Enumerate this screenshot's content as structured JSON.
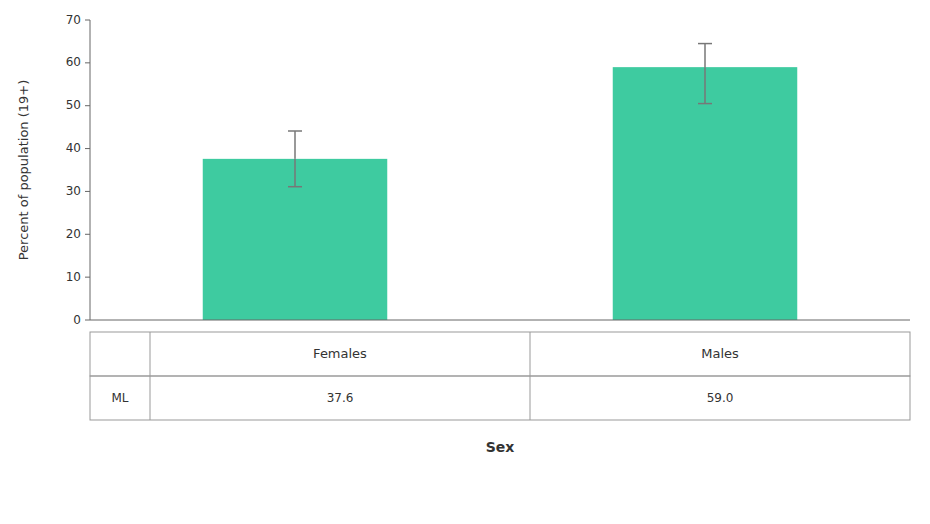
{
  "chart_data": {
    "type": "bar",
    "categories": [
      "Females",
      "Males"
    ],
    "values": [
      37.6,
      59.0
    ],
    "value_labels": [
      "37.6",
      "59.0"
    ],
    "data_labels": true,
    "errors_upper": [
      6.5,
      5.5
    ],
    "errors_lower": [
      6.5,
      8.5
    ],
    "color": "#3ECBA0",
    "xlabel": "Sex",
    "ylabel": "Percent of population (19+)",
    "annotations": [
      "ML"
    ],
    "ylim": [
      0,
      70
    ],
    "yticks": [
      0,
      10,
      20,
      30,
      40,
      50,
      60,
      70
    ],
    "grid": false
  }
}
